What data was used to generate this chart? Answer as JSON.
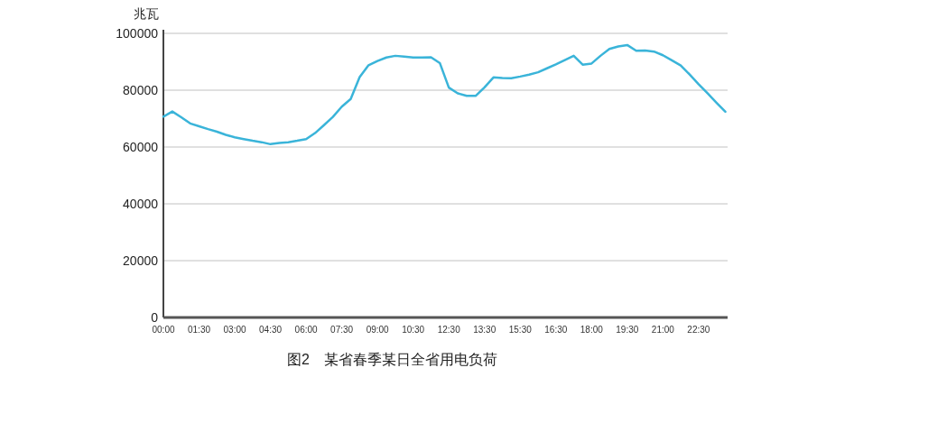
{
  "chart_data": {
    "type": "line",
    "title": "图2　某省春季某日全省用电负荷",
    "ylabel": "兆瓦",
    "categories": [
      "00:00",
      null,
      null,
      null,
      "01:30",
      null,
      null,
      null,
      "03:00",
      null,
      null,
      null,
      "04:30",
      null,
      null,
      null,
      "06:00",
      null,
      null,
      null,
      "07:30",
      null,
      null,
      null,
      "09:00",
      null,
      null,
      null,
      "10:30",
      null,
      null,
      null,
      "12:30",
      null,
      null,
      null,
      "13:30",
      null,
      null,
      null,
      "15:30",
      null,
      null,
      null,
      "16:30",
      null,
      null,
      null,
      "18:00",
      null,
      null,
      null,
      "19:30",
      null,
      null,
      null,
      "21:00",
      null,
      null,
      null,
      "22:30",
      null,
      null,
      null
    ],
    "values": [
      70700,
      72500,
      70500,
      68300,
      67300,
      66300,
      65400,
      64300,
      63400,
      62800,
      62200,
      61700,
      61000,
      61400,
      61700,
      62200,
      62800,
      64900,
      67700,
      70600,
      74200,
      76900,
      84600,
      88800,
      90300,
      91500,
      92100,
      91800,
      91500,
      91500,
      91600,
      89500,
      80900,
      78900,
      78000,
      78000,
      81000,
      84500,
      84300,
      84200,
      84800,
      85500,
      86300,
      87700,
      89100,
      90600,
      92100,
      89000,
      89400,
      92100,
      94500,
      95400,
      95900,
      93900,
      94000,
      93600,
      92300,
      90500,
      88700,
      85500,
      82100,
      78900,
      75600,
      72400
    ],
    "color": "#3ab4d9",
    "grid": "y",
    "ylim": [
      0,
      100000
    ],
    "yticks": [
      0,
      20000,
      40000,
      60000,
      80000,
      100000
    ]
  }
}
